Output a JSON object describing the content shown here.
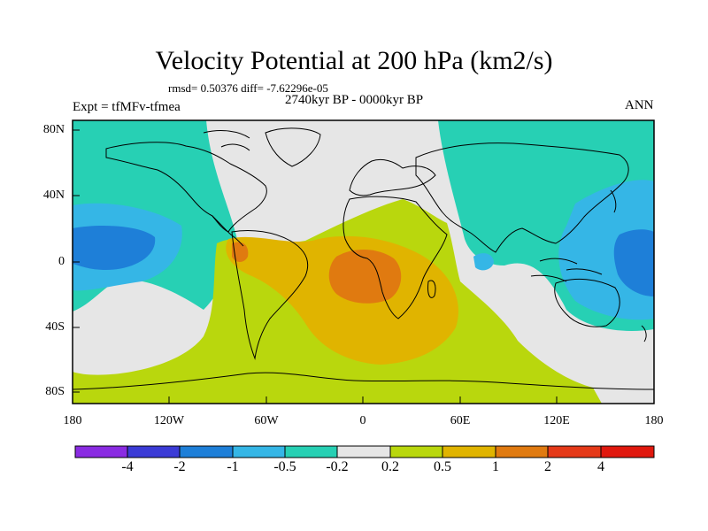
{
  "title": "Velocity Potential at 200 hPa (km2/s)",
  "stats": "rmsd= 0.50376  diff= -7.62296e-05",
  "period": "2740kyr BP - 0000kyr BP",
  "experiment": "Expt = tfMFv-tfmea",
  "season": "ANN",
  "lat_labels": [
    "80N",
    "40N",
    "0",
    "40S",
    "80S"
  ],
  "lon_labels": [
    "180",
    "120W",
    "60W",
    "0",
    "60E",
    "120E",
    "180"
  ],
  "colorbar": {
    "labels": [
      "-4",
      "-2",
      "-1",
      "-0.5",
      "-0.2",
      "0.2",
      "0.5",
      "1",
      "2",
      "4"
    ],
    "colors": [
      "#8a2be2",
      "#3b3bd6",
      "#1e7fd8",
      "#35b6e6",
      "#27d0b4",
      "#e6e6e6",
      "#b9d70d",
      "#e0b400",
      "#e07a10",
      "#e53918",
      "#e0180e"
    ]
  },
  "map_colors": {
    "ocean_neutral": "#e6e6e6",
    "positive_low": "#b9d70d",
    "positive_mid": "#e0b400",
    "positive_high": "#e07a10",
    "negative_low": "#27d0b4",
    "negative_mid": "#35b6e6",
    "negative_high": "#1e7fd8",
    "coast": "#000000"
  }
}
